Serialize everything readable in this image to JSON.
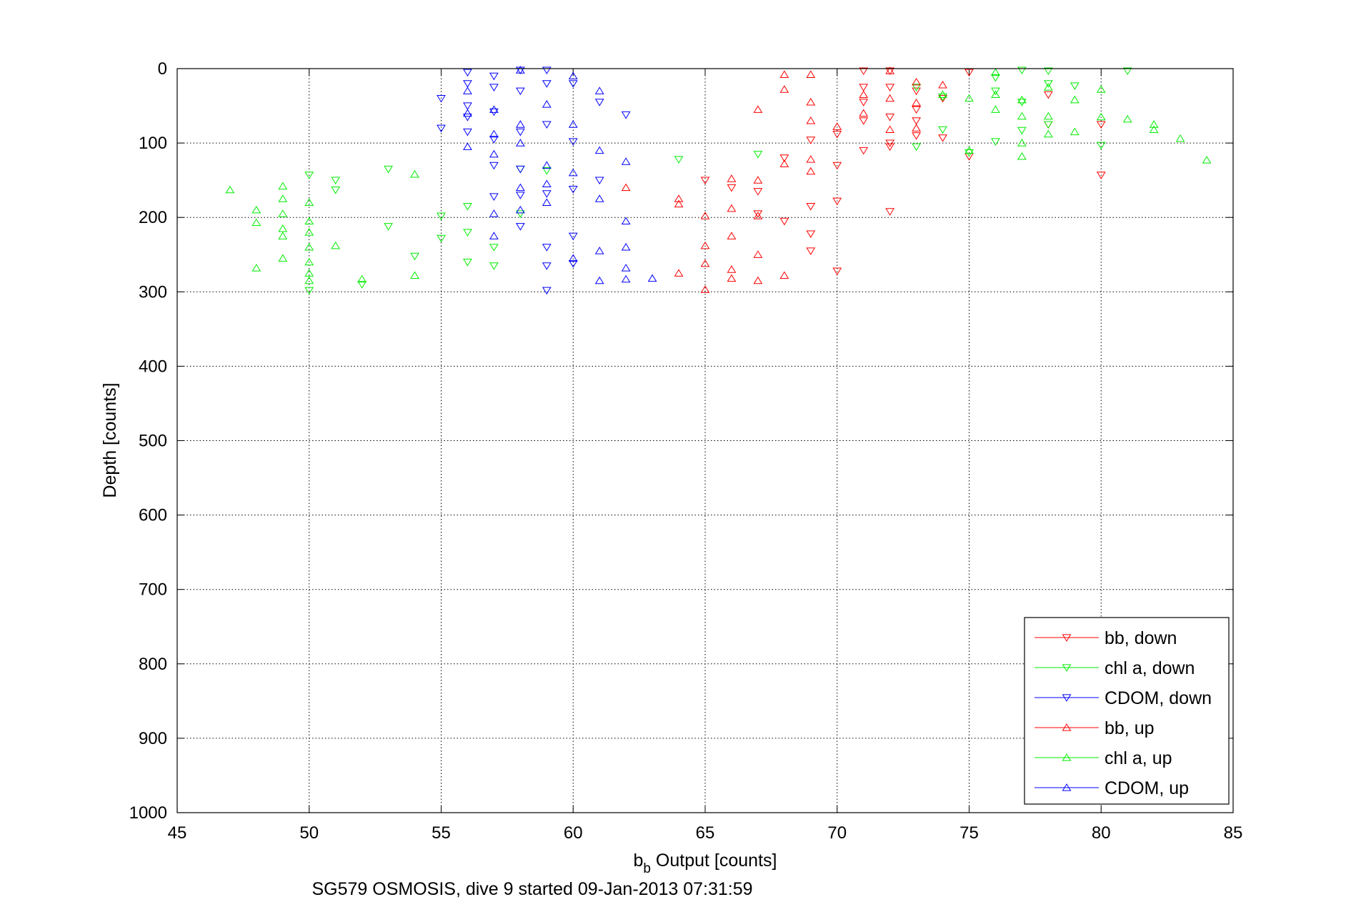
{
  "chart_data": {
    "type": "scatter",
    "xlabel_main": "b",
    "xlabel_sub": "b",
    "xlabel_rest": " Output [counts]",
    "ylabel": "Depth [counts]",
    "caption": "SG579 OSMOSIS, dive 9 started 09-Jan-2013 07:31:59",
    "xlim": [
      45,
      85
    ],
    "ylim": [
      0,
      1000
    ],
    "y_reversed": true,
    "grid": true,
    "legend_position": "bottom-right",
    "xticks": [
      "45",
      "50",
      "55",
      "60",
      "65",
      "70",
      "75",
      "80",
      "85"
    ],
    "yticks": [
      "0",
      "100",
      "200",
      "300",
      "400",
      "500",
      "600",
      "700",
      "800",
      "900",
      "1000"
    ],
    "series": [
      {
        "name": "bb, down",
        "color": "#ff0000",
        "marker": "triangle-down",
        "x": [
          65,
          66,
          67,
          67,
          68,
          68,
          69,
          69,
          69,
          69,
          70,
          70,
          70,
          70,
          71,
          71,
          71,
          71,
          71,
          72,
          72,
          72,
          72,
          72,
          72,
          73,
          73,
          73,
          73,
          74,
          74,
          75,
          75,
          78,
          78,
          80,
          80
        ],
        "y": [
          150,
          160,
          195,
          165,
          120,
          205,
          96,
          185,
          222,
          245,
          130,
          178,
          272,
          88,
          3,
          25,
          45,
          70,
          110,
          3,
          25,
          65,
          105,
          100,
          192,
          30,
          55,
          70,
          90,
          40,
          93,
          5,
          118,
          35,
          75,
          75,
          143
        ]
      },
      {
        "name": "chl a, down",
        "color": "#00ee00",
        "marker": "triangle-down",
        "x": [
          50,
          50,
          51,
          51,
          52,
          53,
          53,
          54,
          55,
          55,
          56,
          56,
          56,
          57,
          57,
          58,
          58,
          59,
          64,
          67,
          73,
          73,
          74,
          74,
          75,
          76,
          76,
          76,
          77,
          77,
          77,
          78,
          78,
          78,
          79,
          80,
          81
        ],
        "y": [
          143,
          298,
          150,
          163,
          290,
          135,
          212,
          252,
          198,
          228,
          185,
          220,
          260,
          240,
          265,
          135,
          195,
          137,
          122,
          115,
          105,
          25,
          38,
          82,
          113,
          12,
          30,
          98,
          2,
          45,
          83,
          3,
          20,
          75,
          23,
          103,
          3
        ]
      },
      {
        "name": "CDOM, down",
        "color": "#0000ff",
        "marker": "triangle-down",
        "x": [
          55,
          55,
          56,
          56,
          56,
          56,
          56,
          57,
          57,
          57,
          57,
          57,
          57,
          58,
          58,
          58,
          58,
          58,
          58,
          59,
          59,
          59,
          59,
          59,
          59,
          59,
          60,
          60,
          60,
          60,
          60,
          61,
          61,
          62
        ],
        "y": [
          40,
          80,
          5,
          20,
          50,
          85,
          65,
          10,
          25,
          58,
          95,
          130,
          172,
          2,
          30,
          85,
          135,
          170,
          212,
          2,
          20,
          75,
          168,
          240,
          265,
          298,
          20,
          98,
          162,
          225,
          262,
          45,
          150,
          62
        ]
      },
      {
        "name": "bb, up",
        "color": "#ff0000",
        "marker": "triangle-up",
        "x": [
          64,
          64,
          64,
          65,
          65,
          65,
          65,
          66,
          66,
          66,
          66,
          66,
          67,
          67,
          67,
          67,
          67,
          68,
          68,
          68,
          68,
          69,
          69,
          69,
          69,
          69,
          70,
          71,
          71,
          72,
          72,
          72,
          73,
          73,
          73,
          74,
          62
        ],
        "y": [
          175,
          182,
          275,
          198,
          238,
          262,
          297,
          148,
          188,
          225,
          270,
          282,
          55,
          150,
          198,
          250,
          285,
          8,
          28,
          128,
          278,
          8,
          45,
          70,
          122,
          138,
          78,
          35,
          60,
          3,
          40,
          82,
          18,
          80,
          46,
          22,
          160
        ]
      },
      {
        "name": "chl a, up",
        "color": "#00ee00",
        "marker": "triangle-up",
        "x": [
          47,
          48,
          48,
          48,
          49,
          49,
          49,
          49,
          49,
          49,
          50,
          50,
          50,
          50,
          50,
          50,
          50,
          51,
          52,
          54,
          54,
          74,
          75,
          75,
          76,
          76,
          76,
          77,
          77,
          77,
          77,
          78,
          78,
          78,
          79,
          79,
          80,
          80,
          81,
          82,
          82,
          83,
          84
        ],
        "y": [
          163,
          190,
          207,
          268,
          158,
          175,
          195,
          215,
          225,
          255,
          180,
          205,
          220,
          240,
          260,
          275,
          285,
          238,
          283,
          142,
          278,
          35,
          40,
          110,
          5,
          35,
          55,
          42,
          64,
          100,
          118,
          64,
          25,
          88,
          42,
          85,
          28,
          65,
          68,
          75,
          82,
          94,
          123
        ]
      },
      {
        "name": "CDOM, up",
        "color": "#0000ff",
        "marker": "triangle-up",
        "x": [
          56,
          56,
          56,
          57,
          57,
          57,
          57,
          57,
          58,
          58,
          58,
          58,
          58,
          59,
          59,
          59,
          59,
          60,
          60,
          60,
          60,
          61,
          61,
          61,
          61,
          61,
          62,
          62,
          62,
          62,
          62,
          63
        ],
        "y": [
          30,
          60,
          105,
          55,
          88,
          115,
          195,
          225,
          75,
          100,
          160,
          190,
          2,
          130,
          155,
          180,
          48,
          10,
          75,
          140,
          255,
          30,
          110,
          175,
          245,
          285,
          125,
          205,
          240,
          268,
          283,
          282
        ]
      }
    ]
  }
}
